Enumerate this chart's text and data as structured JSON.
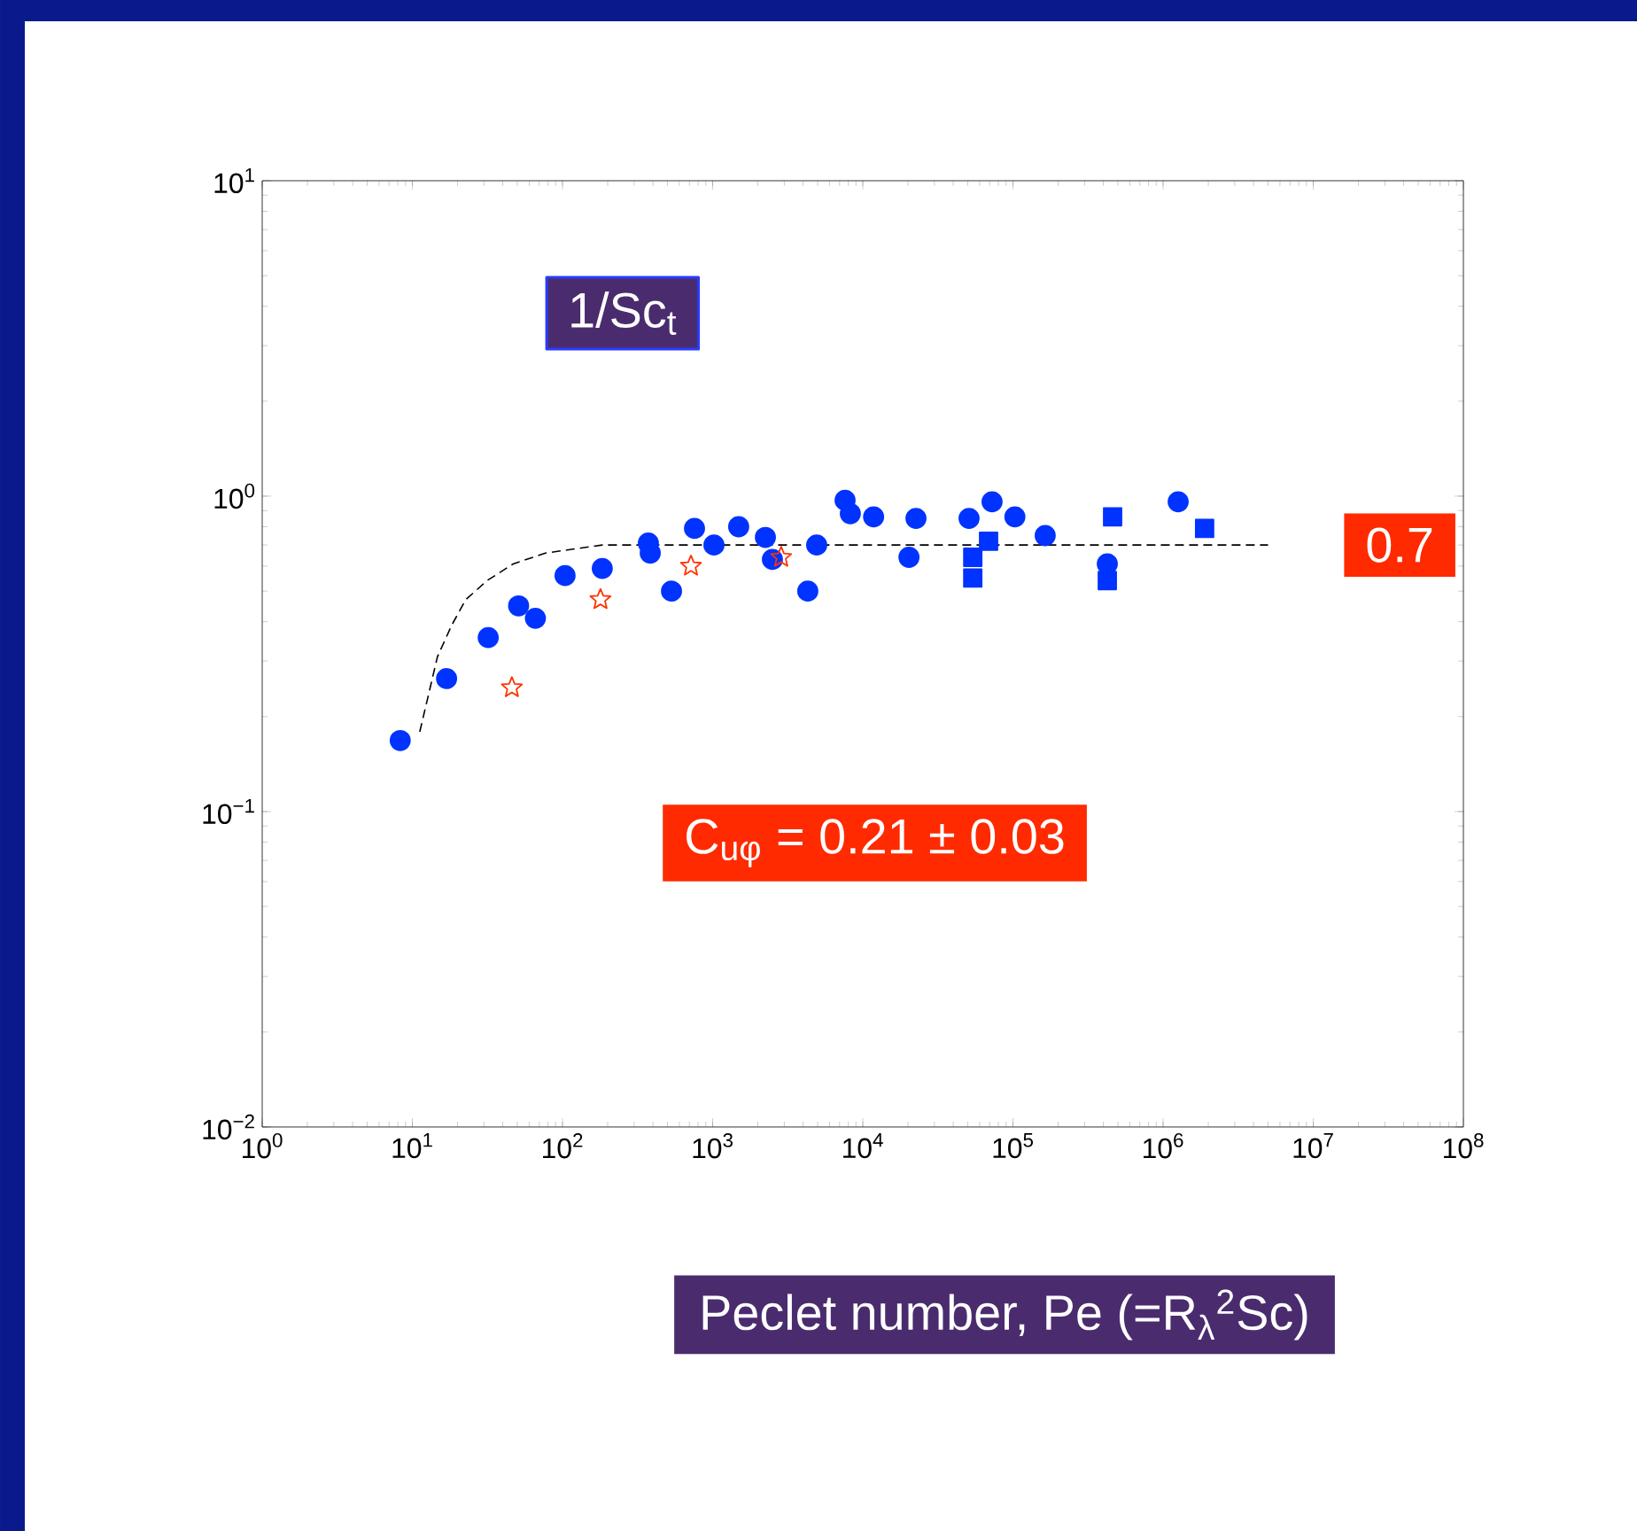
{
  "chart_data": {
    "type": "scatter",
    "ylabel": "1/Sc$_{t}$",
    "xlabel": "Peclet number, Pe (=R$_{λ}$$^{2}$Sc)",
    "annotations": [
      "0.7",
      "C$_{uφ}$ = 0.21 ± 0.03"
    ],
    "log": "xy",
    "xlim": [
      1,
      100000000
    ],
    "ylim": [
      0.01,
      10
    ],
    "xticks": [
      {
        "value": 1,
        "label": "10$^{0}$"
      },
      {
        "value": 10,
        "label": "10$^{1}$"
      },
      {
        "value": 100,
        "label": "10$^{2}$"
      },
      {
        "value": 1000,
        "label": "10$^{3}$"
      },
      {
        "value": 10000,
        "label": "10$^{4}$"
      },
      {
        "value": 100000,
        "label": "10$^{5}$"
      },
      {
        "value": 1000000,
        "label": "10$^{6}$"
      },
      {
        "value": 10000000,
        "label": "10$^{7}$"
      },
      {
        "value": 100000000,
        "label": "10$^{8}$"
      }
    ],
    "yticks": [
      {
        "value": 0.01,
        "label": "10$^{−2}$"
      },
      {
        "value": 0.1,
        "label": "10$^{−1}$"
      },
      {
        "value": 1,
        "label": "10$^{0}$"
      },
      {
        "value": 10,
        "label": "10$^{1}$"
      }
    ],
    "series": [
      {
        "color": "#0033ff",
        "marker": "circle",
        "x": [
          8.3,
          16.9,
          32,
          51,
          104,
          184,
          373,
          757,
          1020,
          2245,
          2500,
          4930,
          7620
        ],
        "values": [
          0.168,
          0.264,
          0.356,
          0.449,
          0.56,
          0.59,
          0.71,
          0.79,
          0.7,
          0.74,
          0.63,
          0.7,
          0.97
        ]
      },
      {
        "color": "#0033ff",
        "marker": "circle",
        "x": [
          66,
          384,
          532,
          1490,
          4300,
          8260,
          11800,
          22600,
          20300,
          72600,
          51000,
          103000,
          164000,
          425000,
          1260000
        ],
        "values": [
          0.41,
          0.66,
          0.5,
          0.8,
          0.5,
          0.88,
          0.86,
          0.85,
          0.64,
          0.96,
          0.85,
          0.86,
          0.75,
          0.61,
          0.96
        ]
      },
      {
        "color": "#0033ff",
        "marker": "square",
        "x": [
          68800,
          461000,
          425000,
          1890000
        ],
        "values": [
          0.72,
          0.86,
          0.54,
          0.79
        ]
      },
      {
        "color": "#0033ff",
        "marker": "square",
        "x": [
          54000,
          54000
        ],
        "values": [
          0.64,
          0.55
        ]
      },
      {
        "color": "#ff3300",
        "marker": "star",
        "x": [
          46,
          179,
          717,
          2860
        ],
        "values": [
          0.247,
          0.47,
          0.6,
          0.64
        ]
      },
      {
        "type": "line",
        "color": "#000000",
        "marker": "none",
        "line_style": "dashed",
        "x": [
          11.2,
          14.7,
          18.3,
          22.7,
          31.5,
          47,
          77,
          184,
          1000,
          10000,
          100000,
          1000000,
          5000000
        ],
        "values": [
          0.179,
          0.31,
          0.39,
          0.47,
          0.54,
          0.61,
          0.66,
          0.7,
          0.7,
          0.7,
          0.7,
          0.7,
          0.7
        ]
      }
    ]
  }
}
